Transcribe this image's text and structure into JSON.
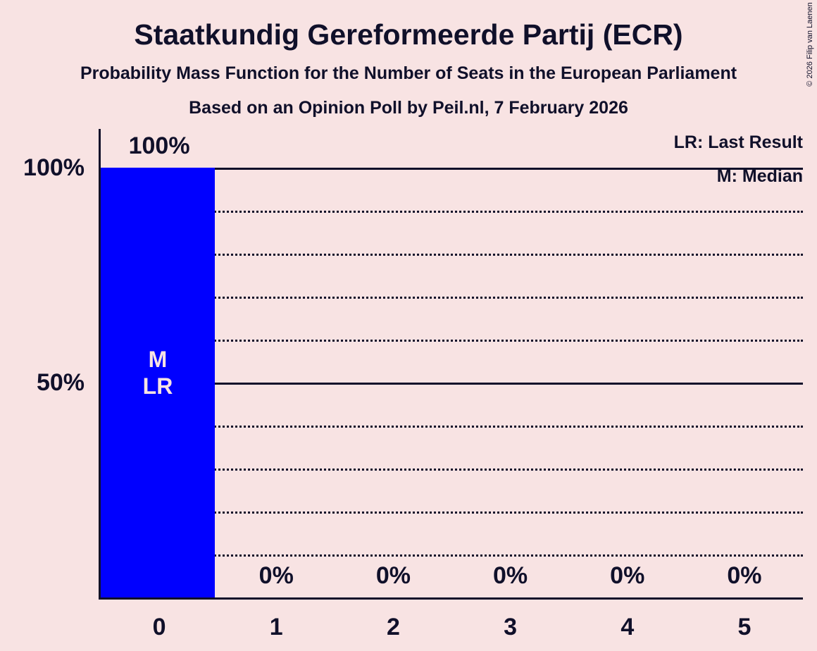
{
  "header": {
    "title": "Staatkundig Gereformeerde Partij (ECR)",
    "subtitle": "Probability Mass Function for the Number of Seats in the European Parliament",
    "source": "Based on an Opinion Poll by Peil.nl, 7 February 2026"
  },
  "legend": {
    "items": [
      "LR: Last Result",
      "M: Median"
    ]
  },
  "copyright": "© 2026 Filip van Laenen",
  "chart_data": {
    "type": "bar",
    "title": "Staatkundig Gereformeerde Partij (ECR)",
    "categories": [
      "0",
      "1",
      "2",
      "3",
      "4",
      "5"
    ],
    "values": [
      100,
      0,
      0,
      0,
      0,
      0
    ],
    "bar_value_labels": [
      "100%",
      "0%",
      "0%",
      "0%",
      "0%",
      "0%"
    ],
    "xlabel": "",
    "ylabel": "",
    "ylim": [
      0,
      100
    ],
    "ytick_labels": [
      {
        "pct": 100,
        "label": "100%"
      },
      {
        "pct": 50,
        "label": "50%"
      }
    ],
    "gridlines": {
      "solid_pct": [
        100,
        50
      ],
      "dotted_pct": [
        90,
        80,
        70,
        60,
        40,
        30,
        20,
        10
      ]
    },
    "legend_entries": [
      "LR: Last Result",
      "M: Median"
    ],
    "legend_position": "top-right",
    "median_category": "0",
    "last_result_category": "0",
    "bar_annotations": [
      {
        "category_index": 0,
        "lines": [
          "M",
          "LR"
        ]
      }
    ],
    "colors": {
      "background": "#F8E3E3",
      "bar": "#0000FF",
      "text": "#10102A",
      "bar_annotation_text": "#F8E3E3"
    }
  }
}
